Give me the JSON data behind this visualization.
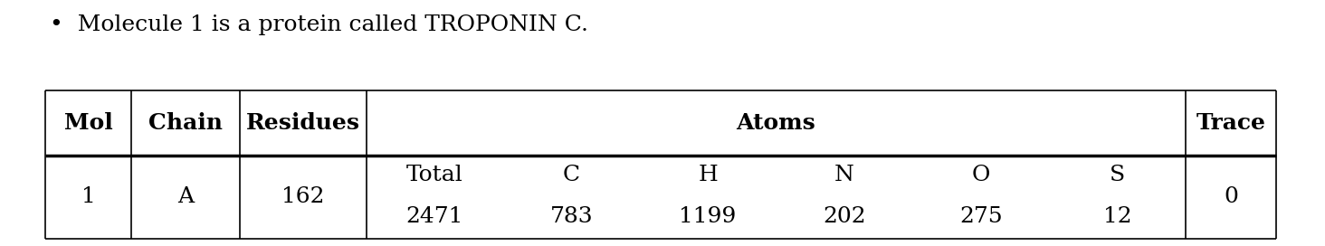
{
  "bullet_text": "Molecule 1 is a protein called TROPONIN C.",
  "header_labels": [
    "Mol",
    "Chain",
    "Residues",
    "Atoms",
    "Trace"
  ],
  "data_row_left": [
    "1",
    "A",
    "162"
  ],
  "data_row_atoms_top": [
    "Total",
    "C",
    "H",
    "N",
    "O",
    "S"
  ],
  "data_row_atoms_bot": [
    "2471",
    "783",
    "1199",
    "202",
    "275",
    "12"
  ],
  "data_row_trace": "0",
  "bg_color": "#ffffff",
  "text_color": "#000000",
  "font_size": 18,
  "bullet_font_size": 18,
  "figwidth": 14.64,
  "figheight": 2.72,
  "dpi": 100
}
